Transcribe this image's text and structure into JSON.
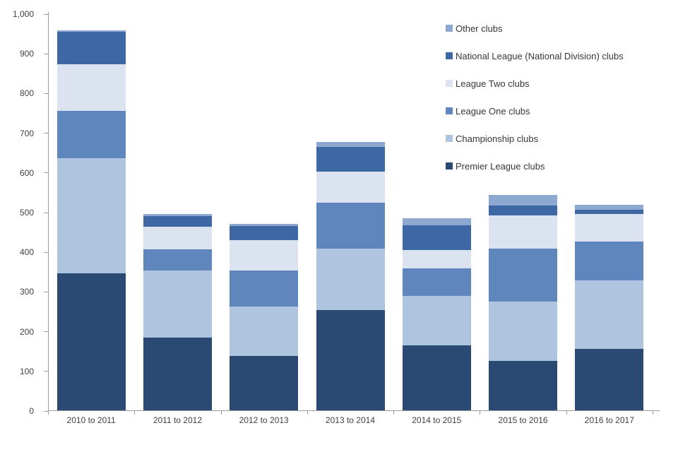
{
  "chart_data": {
    "type": "bar",
    "stacked": true,
    "title": "",
    "categories": [
      "2010 to 2011",
      "2011 to 2012",
      "2012 to 2013",
      "2013 to 2014",
      "2014 to 2015",
      "2015 to 2016",
      "2016 to 2017"
    ],
    "series": [
      {
        "name": "Premier League clubs",
        "color": "#2B4A73",
        "values": [
          345,
          184,
          137,
          252,
          164,
          124,
          154
        ]
      },
      {
        "name": "Championship clubs",
        "color": "#AFC4DF",
        "values": [
          290,
          168,
          124,
          155,
          124,
          150,
          173
        ]
      },
      {
        "name": "League One clubs",
        "color": "#5F87BD",
        "values": [
          120,
          53,
          91,
          116,
          70,
          133,
          98
        ]
      },
      {
        "name": "League Two clubs",
        "color": "#DCE3F0",
        "values": [
          117,
          57,
          76,
          78,
          46,
          84,
          69
        ]
      },
      {
        "name": "National League (National Division) clubs",
        "color": "#3E68A4",
        "values": [
          81,
          27,
          36,
          62,
          62,
          25,
          12
        ]
      },
      {
        "name": "Other clubs",
        "color": "#8DA9D1",
        "values": [
          4,
          5,
          6,
          14,
          18,
          27,
          11
        ]
      }
    ],
    "legend": {
      "position": "top-right",
      "order_top_to_bottom": [
        "Other clubs",
        "National League (National Division) clubs",
        "League Two clubs",
        "League One clubs",
        "Championship clubs",
        "Premier League clubs"
      ]
    },
    "y_axis": {
      "min": 0,
      "max": 1000,
      "step": 100,
      "tick_labels": [
        "0",
        "100",
        "200",
        "300",
        "400",
        "500",
        "600",
        "700",
        "800",
        "900",
        "1,000"
      ]
    },
    "x_axis": {
      "tick_labels": [
        "2010 to 2011",
        "2011 to 2012",
        "2012 to 2013",
        "2013 to 2014",
        "2014 to 2015",
        "2015 to 2016",
        "2016 to 2017"
      ]
    },
    "grid": false,
    "axis_color": "#9C9C9C",
    "text_color": "#3F3F3F"
  }
}
